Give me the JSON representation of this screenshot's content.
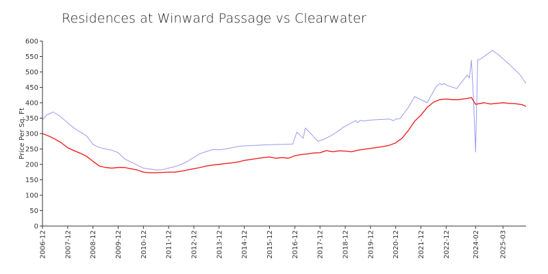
{
  "chart_data": {
    "type": "line",
    "title": "Residences at Winward Passage vs Clearwater",
    "xlabel": "",
    "ylabel": "Price Per Sq. Ft",
    "ylim": [
      0,
      600
    ],
    "yticks": [
      0,
      50,
      100,
      150,
      200,
      250,
      300,
      350,
      400,
      450,
      500,
      550,
      600
    ],
    "xticks": [
      "2006-12",
      "2007-12",
      "2008-12",
      "2009-12",
      "2010-12",
      "2011-12",
      "2012-12",
      "2013-12",
      "2014-12",
      "2015-12",
      "2016-12",
      "2017-12",
      "2018-12",
      "2019-12",
      "2020-12",
      "2021-12",
      "2022-12",
      "2024-02",
      "2025-03"
    ],
    "x_range": [
      "2006-12",
      "2026-02"
    ],
    "grid": false,
    "series": [
      {
        "name": "Residences at Winward Passage",
        "color": "#9999ee",
        "points": [
          [
            "2006-12",
            345
          ],
          [
            "2007-02",
            360
          ],
          [
            "2007-05",
            370
          ],
          [
            "2007-08",
            358
          ],
          [
            "2007-12",
            335
          ],
          [
            "2008-03",
            318
          ],
          [
            "2008-06",
            305
          ],
          [
            "2008-09",
            292
          ],
          [
            "2008-12",
            265
          ],
          [
            "2009-03",
            255
          ],
          [
            "2009-06",
            250
          ],
          [
            "2009-09",
            246
          ],
          [
            "2009-12",
            238
          ],
          [
            "2010-03",
            218
          ],
          [
            "2010-06",
            208
          ],
          [
            "2010-09",
            198
          ],
          [
            "2010-12",
            188
          ],
          [
            "2011-03",
            185
          ],
          [
            "2011-06",
            182
          ],
          [
            "2011-09",
            183
          ],
          [
            "2011-12",
            188
          ],
          [
            "2012-03",
            193
          ],
          [
            "2012-06",
            200
          ],
          [
            "2012-09",
            210
          ],
          [
            "2012-12",
            223
          ],
          [
            "2013-03",
            235
          ],
          [
            "2013-06",
            242
          ],
          [
            "2013-09",
            248
          ],
          [
            "2013-12",
            247
          ],
          [
            "2014-03",
            250
          ],
          [
            "2014-06",
            254
          ],
          [
            "2014-09",
            258
          ],
          [
            "2014-12",
            260
          ],
          [
            "2015-06",
            262
          ],
          [
            "2015-12",
            264
          ],
          [
            "2016-06",
            265
          ],
          [
            "2016-11",
            266
          ],
          [
            "2017-01",
            305
          ],
          [
            "2017-04",
            285
          ],
          [
            "2017-05",
            318
          ],
          [
            "2017-08",
            297
          ],
          [
            "2017-11",
            275
          ],
          [
            "2018-02",
            282
          ],
          [
            "2018-05",
            292
          ],
          [
            "2018-08",
            305
          ],
          [
            "2018-11",
            320
          ],
          [
            "2019-03",
            335
          ],
          [
            "2019-05",
            342
          ],
          [
            "2019-06",
            335
          ],
          [
            "2019-07",
            343
          ],
          [
            "2019-09",
            341
          ],
          [
            "2019-12",
            344
          ],
          [
            "2020-06",
            346
          ],
          [
            "2020-09",
            347
          ],
          [
            "2020-11",
            342
          ],
          [
            "2020-12",
            347
          ],
          [
            "2021-02",
            348
          ],
          [
            "2021-06",
            385
          ],
          [
            "2021-09",
            420
          ],
          [
            "2022-03",
            400
          ],
          [
            "2022-07",
            450
          ],
          [
            "2022-09",
            463
          ],
          [
            "2022-10",
            458
          ],
          [
            "2022-11",
            462
          ],
          [
            "2023-01",
            455
          ],
          [
            "2023-05",
            446
          ],
          [
            "2023-10",
            490
          ],
          [
            "2023-11",
            480
          ],
          [
            "2023-12",
            538
          ],
          [
            "2024-01",
            410
          ],
          [
            "2024-02",
            240
          ],
          [
            "2024-03",
            540
          ],
          [
            "2024-04",
            540
          ],
          [
            "2024-07",
            555
          ],
          [
            "2024-10",
            570
          ],
          [
            "2025-01",
            555
          ],
          [
            "2025-06",
            525
          ],
          [
            "2025-11",
            492
          ],
          [
            "2026-02",
            462
          ]
        ]
      },
      {
        "name": "Clearwater",
        "color": "#ee2222",
        "points": [
          [
            "2006-12",
            300
          ],
          [
            "2007-03",
            292
          ],
          [
            "2007-06",
            282
          ],
          [
            "2007-09",
            270
          ],
          [
            "2007-12",
            254
          ],
          [
            "2008-03",
            245
          ],
          [
            "2008-06",
            236
          ],
          [
            "2008-09",
            226
          ],
          [
            "2008-12",
            210
          ],
          [
            "2009-03",
            195
          ],
          [
            "2009-06",
            190
          ],
          [
            "2009-09",
            188
          ],
          [
            "2009-12",
            190
          ],
          [
            "2010-03",
            190
          ],
          [
            "2010-06",
            186
          ],
          [
            "2010-09",
            182
          ],
          [
            "2010-12",
            175
          ],
          [
            "2011-03",
            173
          ],
          [
            "2011-06",
            173
          ],
          [
            "2011-09",
            174
          ],
          [
            "2011-12",
            175
          ],
          [
            "2012-03",
            175
          ],
          [
            "2012-06",
            178
          ],
          [
            "2012-09",
            182
          ],
          [
            "2012-12",
            186
          ],
          [
            "2013-03",
            190
          ],
          [
            "2013-06",
            195
          ],
          [
            "2013-09",
            198
          ],
          [
            "2013-12",
            200
          ],
          [
            "2014-03",
            203
          ],
          [
            "2014-06",
            205
          ],
          [
            "2014-09",
            208
          ],
          [
            "2014-12",
            213
          ],
          [
            "2015-03",
            216
          ],
          [
            "2015-06",
            219
          ],
          [
            "2015-09",
            222
          ],
          [
            "2015-12",
            224
          ],
          [
            "2016-03",
            220
          ],
          [
            "2016-06",
            222
          ],
          [
            "2016-09",
            220
          ],
          [
            "2016-12",
            228
          ],
          [
            "2017-03",
            232
          ],
          [
            "2017-06",
            234
          ],
          [
            "2017-09",
            237
          ],
          [
            "2017-12",
            238
          ],
          [
            "2018-03",
            245
          ],
          [
            "2018-06",
            241
          ],
          [
            "2018-09",
            244
          ],
          [
            "2018-12",
            243
          ],
          [
            "2019-03",
            241
          ],
          [
            "2019-06",
            246
          ],
          [
            "2019-09",
            249
          ],
          [
            "2019-12",
            252
          ],
          [
            "2020-03",
            255
          ],
          [
            "2020-06",
            258
          ],
          [
            "2020-09",
            262
          ],
          [
            "2020-12",
            270
          ],
          [
            "2021-03",
            285
          ],
          [
            "2021-06",
            310
          ],
          [
            "2021-09",
            340
          ],
          [
            "2021-12",
            360
          ],
          [
            "2022-03",
            385
          ],
          [
            "2022-06",
            402
          ],
          [
            "2022-09",
            410
          ],
          [
            "2022-12",
            412
          ],
          [
            "2023-03",
            410
          ],
          [
            "2023-06",
            410
          ],
          [
            "2023-09",
            413
          ],
          [
            "2023-12",
            417
          ],
          [
            "2024-02",
            395
          ],
          [
            "2024-06",
            400
          ],
          [
            "2024-09",
            396
          ],
          [
            "2024-12",
            398
          ],
          [
            "2025-03",
            400
          ],
          [
            "2025-06",
            398
          ],
          [
            "2025-09",
            397
          ],
          [
            "2025-12",
            394
          ],
          [
            "2026-02",
            388
          ]
        ]
      }
    ]
  }
}
